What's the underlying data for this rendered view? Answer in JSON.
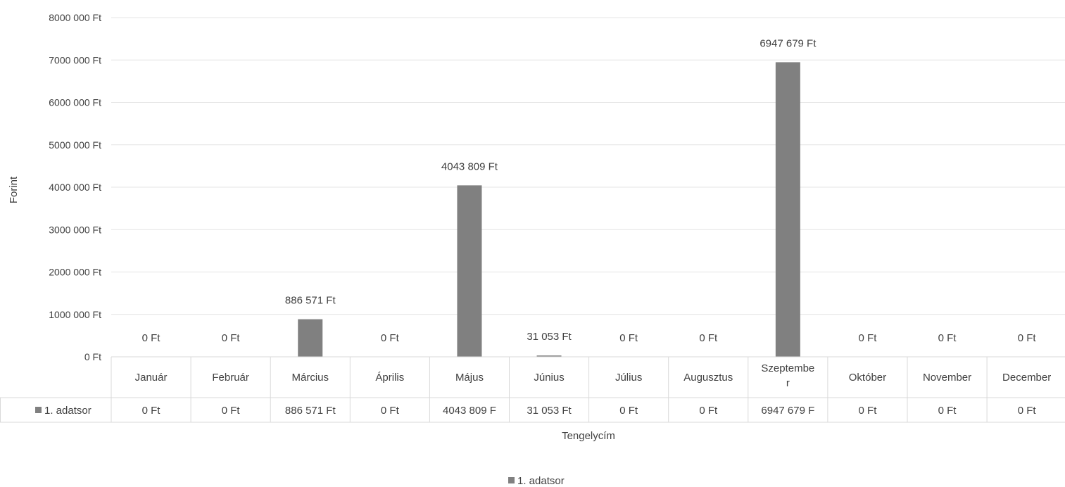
{
  "chart_data": {
    "type": "bar",
    "title": "",
    "xlabel": "Tengelycím",
    "ylabel": "Forint",
    "ylim": [
      0,
      8000000
    ],
    "yticks": [
      0,
      1000000,
      2000000,
      3000000,
      4000000,
      5000000,
      6000000,
      7000000,
      8000000
    ],
    "ytick_labels": [
      "0 Ft",
      "1000 000 Ft",
      "2000 000 Ft",
      "3000 000 Ft",
      "4000 000 Ft",
      "5000 000 Ft",
      "6000 000 Ft",
      "7000 000 Ft",
      "8000 000 Ft"
    ],
    "grid": true,
    "legend_position": "bottom",
    "categories": [
      "Január",
      "Február",
      "Március",
      "Április",
      "Május",
      "Június",
      "Július",
      "Augusztus",
      "Szeptember",
      "Október",
      "November",
      "December"
    ],
    "series": [
      {
        "name": "1. adatsor",
        "color": "#808080",
        "values": [
          0,
          0,
          886571,
          0,
          4043809,
          31053,
          0,
          0,
          6947679,
          0,
          0,
          0
        ],
        "data_labels": [
          "0 Ft",
          "0 Ft",
          "886 571 Ft",
          "0 Ft",
          "4043 809 Ft",
          "31 053 Ft",
          "0 Ft",
          "0 Ft",
          "6947 679 Ft",
          "0 Ft",
          "0 Ft",
          "0 Ft"
        ],
        "table_cells": [
          "0 Ft",
          "0 Ft",
          "886 571 Ft",
          "0 Ft",
          "4043 809 F",
          "31 053 Ft",
          "0 Ft",
          "0 Ft",
          "6947 679 F",
          "0 Ft",
          "0 Ft",
          "0 Ft"
        ]
      }
    ]
  }
}
